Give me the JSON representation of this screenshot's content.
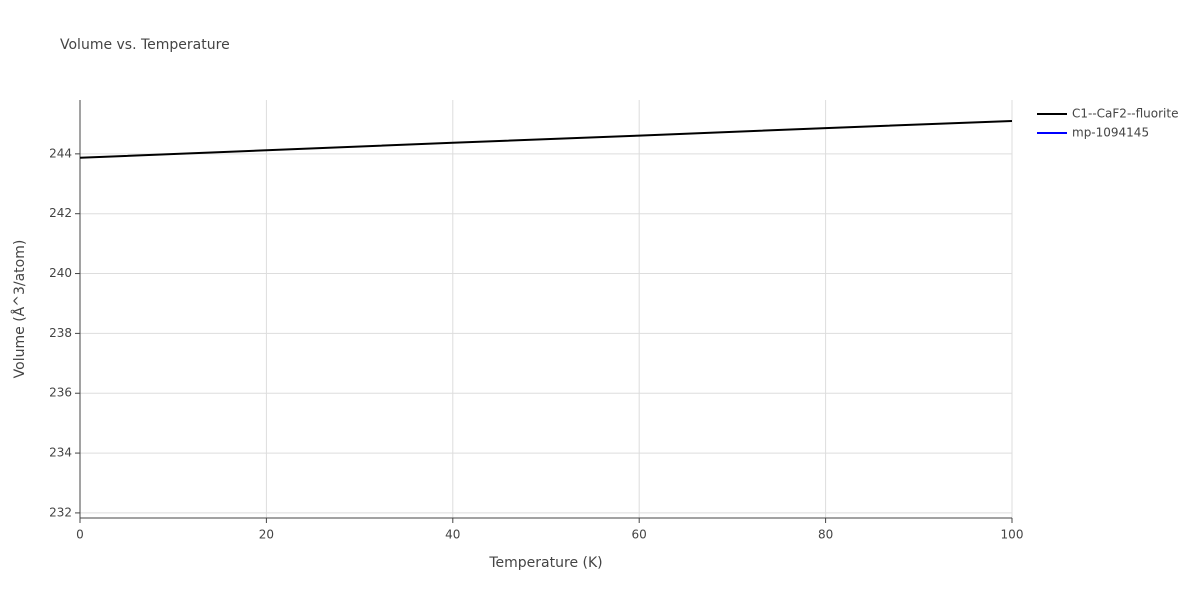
{
  "chart_data": {
    "type": "line",
    "title": "Volume vs. Temperature",
    "x_label": "Temperature (K)",
    "y_label": "Volume (Å^3/atom)",
    "x": [
      0,
      20,
      40,
      60,
      80,
      100
    ],
    "series": [
      {
        "name": "C1--CaF2--fluorite",
        "color": "#000000",
        "values": [
          243.87,
          244.12,
          244.37,
          244.61,
          244.86,
          245.1
        ]
      },
      {
        "name": "mp-1094145",
        "color": "#0000ff",
        "values": [
          null,
          null,
          null,
          null,
          null,
          null
        ]
      }
    ],
    "xlim": [
      0,
      100
    ],
    "xticks": [
      0,
      20,
      40,
      60,
      80,
      100
    ],
    "ylim": [
      231.83,
      245.8
    ],
    "yticks": [
      232,
      234,
      236,
      238,
      240,
      242,
      244
    ],
    "grid": true,
    "legend": "right"
  }
}
